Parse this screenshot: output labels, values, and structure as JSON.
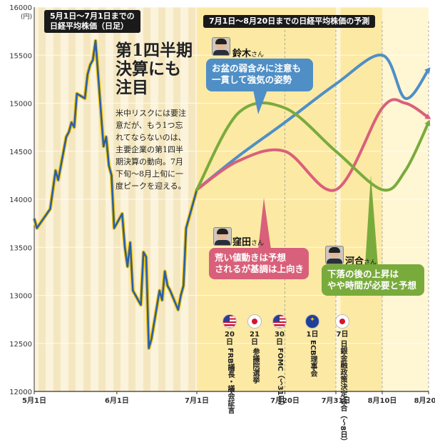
{
  "chart_data": {
    "type": "line",
    "ylim": [
      12000,
      16000
    ],
    "y_ticks": [
      12000,
      12500,
      13000,
      13500,
      14000,
      14500,
      15000,
      15500,
      16000
    ],
    "y_unit": "(円)",
    "x_ticks": [
      "5月1日",
      "6月1日",
      "7月1日",
      "7月20日",
      "7月31日",
      "8月10日",
      "8月20日"
    ],
    "panel_left_title": [
      "5月1日〜7月1日までの",
      "日経平均株価（日足）"
    ],
    "panel_right_title": "7月1日〜8月20日までの日経平均株価の予測",
    "actual_series": {
      "x": [
        "5/1",
        "5/2",
        "5/7",
        "5/8",
        "5/9",
        "5/10",
        "5/13",
        "5/14",
        "5/15",
        "5/16",
        "5/17",
        "5/20",
        "5/21",
        "5/22",
        "5/23",
        "5/24",
        "5/27",
        "5/28",
        "5/29",
        "5/30",
        "5/31",
        "6/3",
        "6/4",
        "6/5",
        "6/6",
        "6/7",
        "6/10",
        "6/11",
        "6/12",
        "6/13",
        "6/14",
        "6/17",
        "6/18",
        "6/19",
        "6/20",
        "6/21",
        "6/24",
        "6/25",
        "6/26",
        "6/27",
        "6/28",
        "7/1"
      ],
      "values": [
        13800,
        13700,
        13900,
        14100,
        14300,
        14200,
        14650,
        14700,
        14800,
        14750,
        15100,
        15050,
        15300,
        15400,
        15450,
        15650,
        14550,
        14650,
        14350,
        14250,
        13700,
        13850,
        13500,
        13300,
        13550,
        13050,
        12900,
        13450,
        13400,
        12450,
        12550,
        13050,
        12950,
        13250,
        13100,
        13050,
        12850,
        13000,
        13100,
        13700,
        13800,
        14100
      ]
    },
    "forecasts": [
      {
        "name": "鈴木",
        "color": "#4f8fc6",
        "x": [
          "7/1",
          "7/10",
          "7/20",
          "7/31",
          "8/10",
          "8/15",
          "8/20"
        ],
        "values": [
          14100,
          14450,
          14800,
          15200,
          15500,
          15050,
          15350
        ]
      },
      {
        "name": "窪田",
        "color": "#d9607a",
        "x": [
          "7/1",
          "7/10",
          "7/20",
          "7/31",
          "8/10",
          "8/15",
          "8/20"
        ],
        "values": [
          14100,
          14400,
          14500,
          14100,
          14950,
          15000,
          14850
        ]
      },
      {
        "name": "河合",
        "color": "#79ab3c",
        "x": [
          "7/1",
          "7/10",
          "7/20",
          "7/31",
          "8/10",
          "8/15",
          "8/20"
        ],
        "values": [
          14100,
          14900,
          14950,
          14500,
          14100,
          14300,
          14800
        ]
      }
    ]
  },
  "headline": [
    "第1四半期",
    "決算にも",
    "注目"
  ],
  "body_lines": [
    "米中リスクには要注",
    "意だが、もう1つ忘",
    "れてならないのは、",
    "主要企業の第1四半",
    "期決算の動向。7月",
    "下旬〜8月上旬に一",
    "度ピークを迎える。"
  ],
  "analysts": [
    {
      "id": "suzuki",
      "name": "鈴木",
      "honorific": "さん",
      "color": "#4f8fc6",
      "comment": [
        "お盆の弱含みに注意も",
        "一貫して強気の姿勢"
      ]
    },
    {
      "id": "kubota",
      "name": "窪田",
      "honorific": "さん",
      "color": "#d9607a",
      "comment": [
        "荒い値動きは予想",
        "されるが基調は上向き"
      ]
    },
    {
      "id": "kawai",
      "name": "河合",
      "honorific": "さん",
      "color": "#79ab3c",
      "comment": [
        "下落の後の上昇は",
        "やや時間が必要と予想"
      ]
    }
  ],
  "events": [
    {
      "flag": "us",
      "date": "20日",
      "label": "FRB議長・議会証言"
    },
    {
      "flag": "jp",
      "date": "21日",
      "label": "参議院選挙"
    },
    {
      "flag": "us",
      "date": "30日",
      "label": "FOMC（〜31日）"
    },
    {
      "flag": "eu",
      "date": "1日",
      "label": "ECB理事会"
    },
    {
      "flag": "jp",
      "date": "7日",
      "label": "日銀金融政策決定会合（〜8日）"
    }
  ],
  "colors": {
    "actual_line": "#2a5fa8",
    "actual_halo": "#f6c400",
    "shade_left": "#fbf3dc",
    "shade_stripe": "#f1e1b4",
    "shade_right": "#fce9a4",
    "axis": "#333333"
  }
}
